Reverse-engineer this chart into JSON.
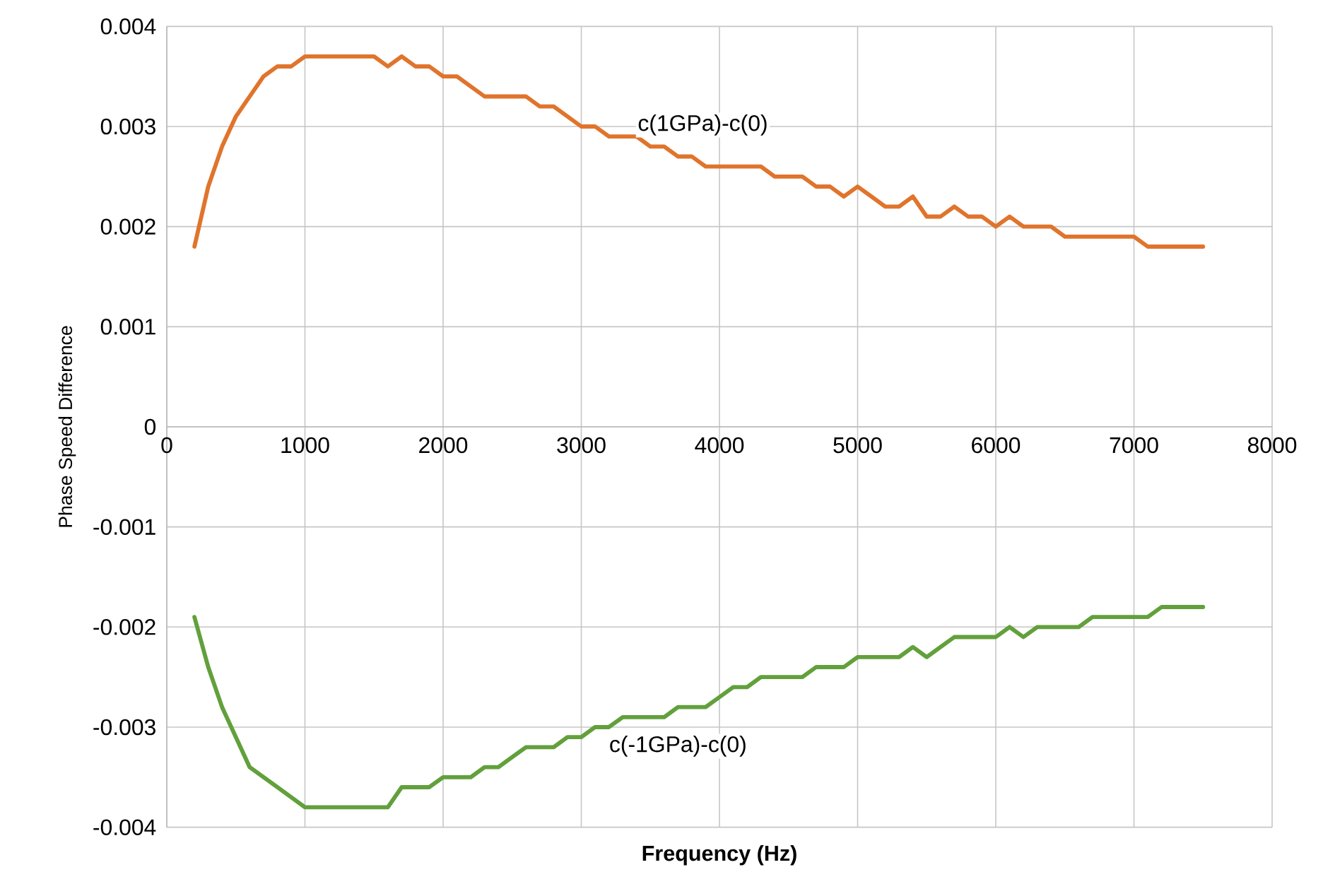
{
  "chart_data": {
    "type": "line",
    "xlabel": "Frequency (Hz)",
    "ylabel": "Phase Speed Difference",
    "xlim": [
      0,
      8000
    ],
    "xticks": [
      0,
      1000,
      2000,
      3000,
      4000,
      5000,
      6000,
      7000,
      8000
    ],
    "ylim": [
      -0.004,
      0.004
    ],
    "yticks": [
      -0.004,
      -0.003,
      -0.002,
      -0.001,
      0,
      0.001,
      0.002,
      0.003,
      0.004
    ],
    "grid": true,
    "legend": false,
    "series": [
      {
        "name": "c(1GPa)-c(0)",
        "color": "#e0742c",
        "x": [
          200,
          300,
          400,
          500,
          600,
          700,
          800,
          900,
          1000,
          1500,
          1600,
          1700,
          1800,
          1900,
          2000,
          2100,
          2300,
          2600,
          2700,
          2800,
          3000,
          3100,
          3200,
          3400,
          3500,
          3600,
          3700,
          3800,
          3900,
          4300,
          4400,
          4600,
          4700,
          4800,
          4900,
          5000,
          5100,
          5200,
          5300,
          5400,
          5500,
          5600,
          5700,
          5800,
          5900,
          6000,
          6100,
          6200,
          6400,
          6500,
          7000,
          7100,
          7500
        ],
        "values": [
          0.0018,
          0.0024,
          0.0028,
          0.0031,
          0.0033,
          0.0035,
          0.0036,
          0.0036,
          0.0037,
          0.0037,
          0.0036,
          0.0037,
          0.0036,
          0.0036,
          0.0035,
          0.0035,
          0.0033,
          0.0033,
          0.0032,
          0.0032,
          0.003,
          0.003,
          0.0029,
          0.0029,
          0.0028,
          0.0028,
          0.0027,
          0.0027,
          0.0026,
          0.0026,
          0.0025,
          0.0025,
          0.0024,
          0.0024,
          0.0023,
          0.0024,
          0.0023,
          0.0022,
          0.0022,
          0.0023,
          0.0021,
          0.0021,
          0.0022,
          0.0021,
          0.0021,
          0.002,
          0.0021,
          0.002,
          0.002,
          0.0019,
          0.0019,
          0.0018,
          0.0018
        ]
      },
      {
        "name": "c(-1GPa)-c(0)",
        "color": "#62a03c",
        "x": [
          200,
          300,
          400,
          500,
          600,
          700,
          800,
          900,
          1000,
          1600,
          1700,
          1800,
          1900,
          2000,
          2200,
          2300,
          2400,
          2500,
          2600,
          2800,
          2900,
          3000,
          3100,
          3200,
          3300,
          3600,
          3700,
          3900,
          4000,
          4100,
          4200,
          4300,
          4600,
          4700,
          4900,
          5000,
          5300,
          5400,
          5500,
          5600,
          5700,
          6000,
          6100,
          6200,
          6300,
          6600,
          6700,
          7000,
          7100,
          7200,
          7500
        ],
        "values": [
          -0.0019,
          -0.0024,
          -0.0028,
          -0.0031,
          -0.0034,
          -0.0035,
          -0.0036,
          -0.0037,
          -0.0038,
          -0.0038,
          -0.0036,
          -0.0036,
          -0.0036,
          -0.0035,
          -0.0035,
          -0.0034,
          -0.0034,
          -0.0033,
          -0.0032,
          -0.0032,
          -0.0031,
          -0.0031,
          -0.003,
          -0.003,
          -0.0029,
          -0.0029,
          -0.0028,
          -0.0028,
          -0.0027,
          -0.0026,
          -0.0026,
          -0.0025,
          -0.0025,
          -0.0024,
          -0.0024,
          -0.0023,
          -0.0023,
          -0.0022,
          -0.0023,
          -0.0022,
          -0.0021,
          -0.0021,
          -0.002,
          -0.0021,
          -0.002,
          -0.002,
          -0.0019,
          -0.0019,
          -0.0019,
          -0.0018,
          -0.0018
        ]
      }
    ]
  }
}
